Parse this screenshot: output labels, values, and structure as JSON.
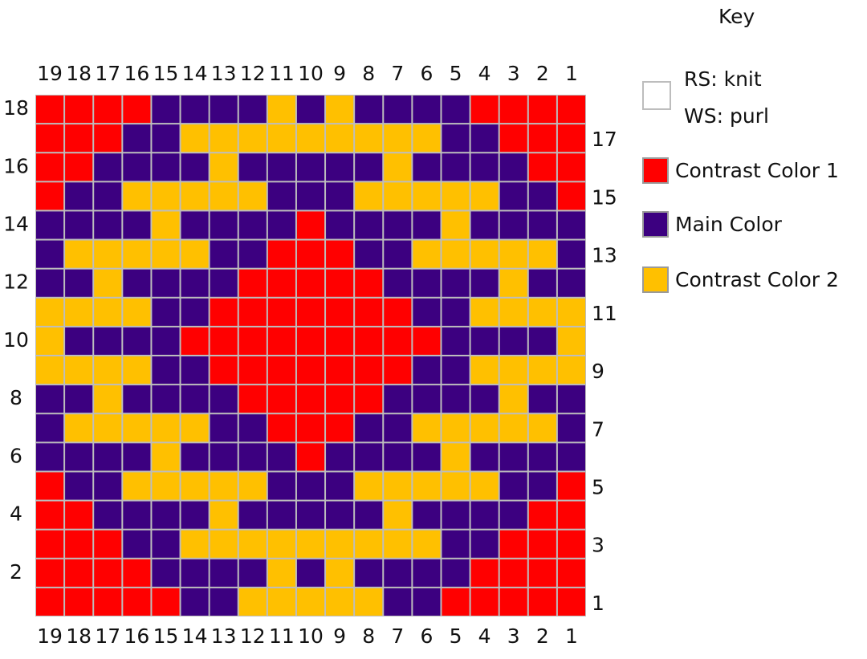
{
  "key": {
    "title": "Key",
    "items": [
      {
        "id": "knit",
        "label_rs": "RS: knit",
        "label_ws": "WS: purl",
        "color": "#ffffff"
      },
      {
        "id": "C",
        "label": "Contrast Color 1",
        "color": "#ff0000"
      },
      {
        "id": "M",
        "label": "Main Color",
        "color": "#3c0080"
      },
      {
        "id": "Y",
        "label": "Contrast Color 2",
        "color": "#ffc000"
      }
    ]
  },
  "chart_data": {
    "type": "heatmap",
    "columns": [
      19,
      18,
      17,
      16,
      15,
      14,
      13,
      12,
      11,
      10,
      9,
      8,
      7,
      6,
      5,
      4,
      3,
      2,
      1
    ],
    "rows_top_to_bottom": [
      18,
      17,
      16,
      15,
      14,
      13,
      12,
      11,
      10,
      9,
      8,
      7,
      6,
      5,
      4,
      3,
      2,
      1
    ],
    "left_row_labels": [
      "18",
      "",
      "16",
      "",
      "14",
      "",
      "12",
      "",
      "10",
      "",
      "8",
      "",
      "6",
      "",
      "4",
      "",
      "2",
      ""
    ],
    "right_row_labels": [
      "",
      "17",
      "",
      "15",
      "",
      "13",
      "",
      "11",
      "",
      "9",
      "",
      "7",
      "",
      "5",
      "",
      "3",
      "",
      "1"
    ],
    "legend": {
      "C": "Contrast Color 1",
      "M": "Main Color",
      "Y": "Contrast Color 2"
    },
    "grid": [
      "CCCCMMMMYMYMMMMCCCC",
      "CCCMMYYYYYYYYYMMCCC",
      "CCMMMMYMMMMMYMMMMCC",
      "CMMYYYYYMMMYYYYYMMC",
      "MMMMYMMMMCMMMMYMMMM",
      "MYYYYYMMCCCMMYYYYYM",
      "MMYMMMMCCCCCMMMMYMM",
      "YYYYMMCCCCCCCMMYYYY",
      "YMMMMCCCCCCCCCMMMMY",
      "YYYYMMCCCCCCCMMYYYY",
      "MMYMMMMCCCCCMMMMYMM",
      "MYYYYYMMCCCMMYYYYYM",
      "MMMMYMMMMCMMMMYMMMM",
      "CMMYYYYYMMMYYYYYMMC",
      "CCMMMMYMMMMMYMMMMCC",
      "CCCMMYYYYYYYYYMMCCC",
      "CCCCMMMMYMYMMMMCCCC",
      "CCCCCMMYYYYYMMCCCCC"
    ]
  }
}
